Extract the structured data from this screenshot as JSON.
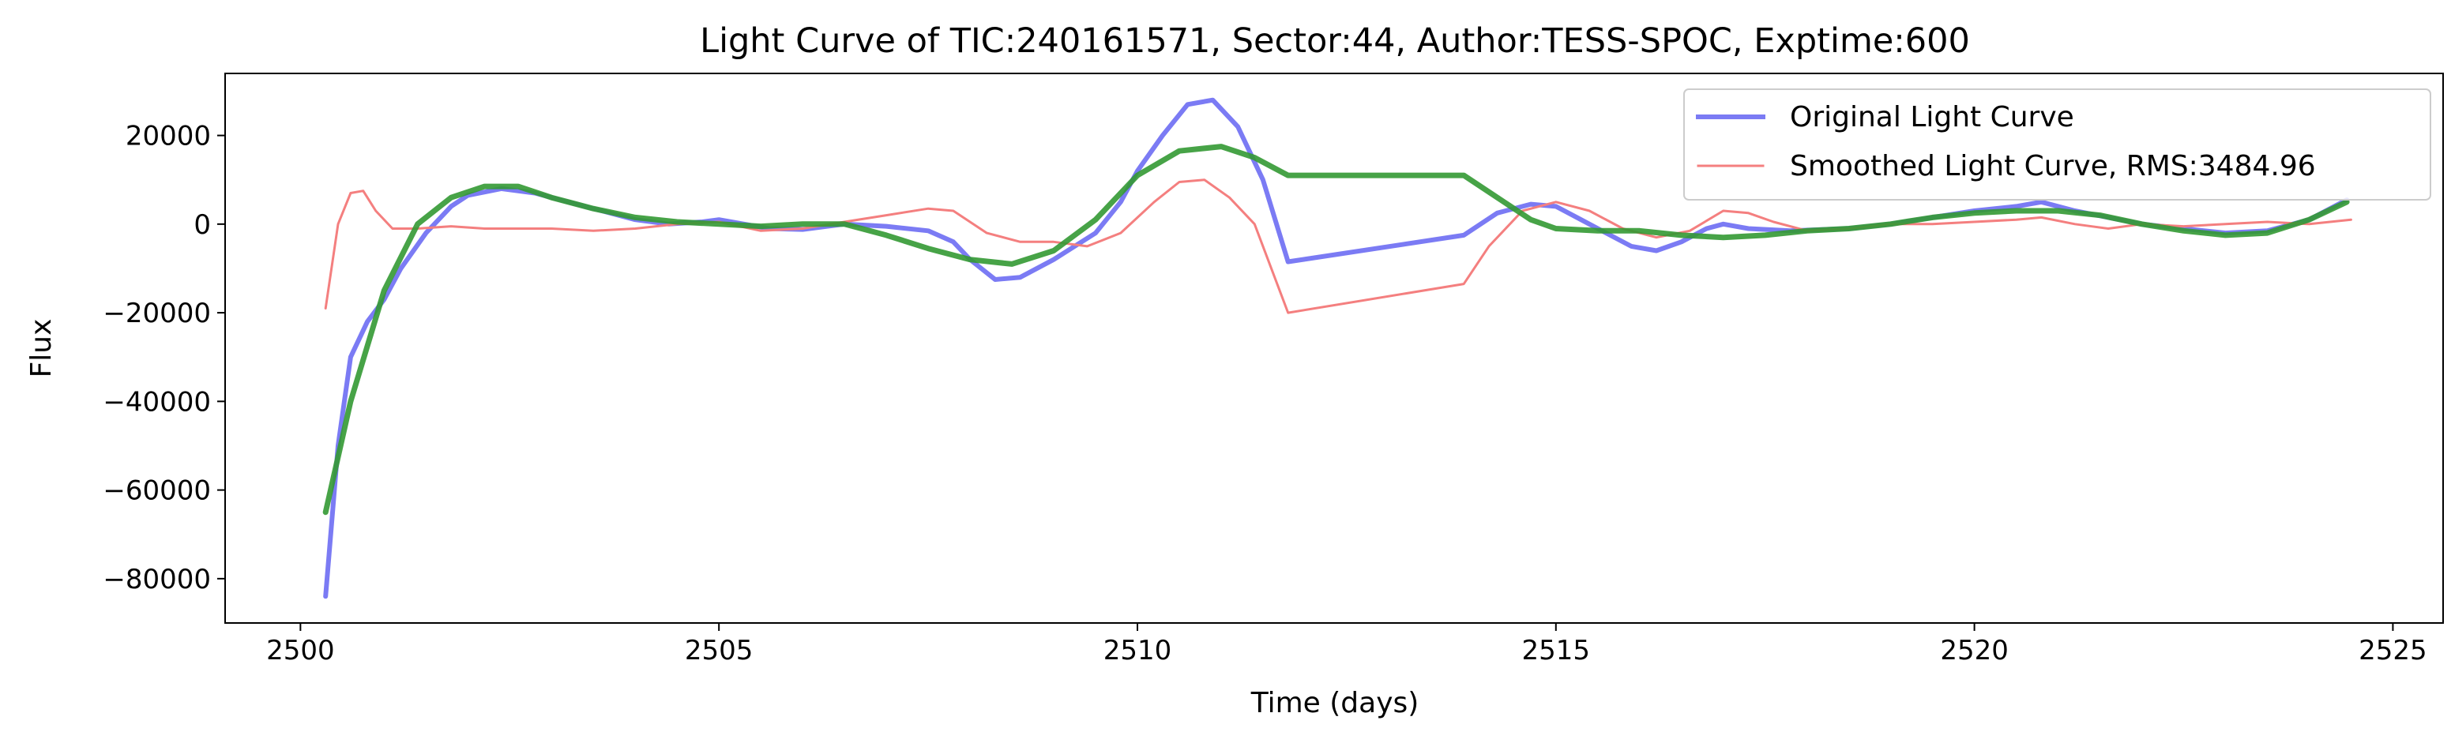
{
  "chart_data": {
    "type": "line",
    "title": "Light Curve of TIC:240161571, Sector:44, Author:TESS-SPOC, Exptime:600",
    "xlabel": "Time (days)",
    "ylabel": "Flux",
    "xlim": [
      2499.1,
      2525.6
    ],
    "ylim": [
      -90000,
      34000
    ],
    "xticks": [
      2500,
      2505,
      2510,
      2515,
      2520,
      2525
    ],
    "yticks": [
      -80000,
      -60000,
      -40000,
      -20000,
      0,
      20000
    ],
    "ytick_labels": [
      "−80000",
      "−60000",
      "−40000",
      "−20000",
      "0",
      "20000"
    ],
    "grid": false,
    "legend_position": "top-right",
    "series": [
      {
        "name": "Original Light Curve",
        "color": "#7b7bf4",
        "x": [
          2500.3,
          2500.45,
          2500.6,
          2500.8,
          2501.0,
          2501.2,
          2501.5,
          2501.8,
          2502.0,
          2502.4,
          2502.8,
          2503.2,
          2503.6,
          2504.0,
          2504.4,
          2504.8,
          2505.0,
          2505.3,
          2505.6,
          2506.0,
          2506.5,
          2507.0,
          2507.5,
          2507.8,
          2508.0,
          2508.3,
          2508.6,
          2509.0,
          2509.5,
          2509.8,
          2510.0,
          2510.3,
          2510.6,
          2510.9,
          2511.2,
          2511.5,
          2511.8,
          2513.9,
          2514.3,
          2514.7,
          2515.0,
          2515.3,
          2515.6,
          2515.9,
          2516.2,
          2516.5,
          2516.8,
          2517.0,
          2517.3,
          2517.8,
          2518.5,
          2519.0,
          2519.5,
          2520.0,
          2520.5,
          2520.8,
          2521.2,
          2521.6,
          2522.0,
          2522.5,
          2523.0,
          2523.5,
          2524.0,
          2524.45
        ],
        "y": [
          -84000,
          -50000,
          -30000,
          -22000,
          -17000,
          -10000,
          -2000,
          4000,
          6500,
          8000,
          7000,
          5000,
          3000,
          1000,
          0,
          500,
          1000,
          0,
          -1000,
          -1200,
          0,
          -500,
          -1500,
          -4000,
          -8000,
          -12500,
          -12000,
          -8000,
          -2000,
          5000,
          12000,
          20000,
          27000,
          28000,
          22000,
          10000,
          -8500,
          -2500,
          2500,
          4500,
          4000,
          1000,
          -2000,
          -5000,
          -6000,
          -4000,
          -1000,
          0,
          -1000,
          -1500,
          -1000,
          0,
          1500,
          3000,
          4000,
          5000,
          3000,
          1500,
          0,
          -1000,
          -2000,
          -1500,
          1000,
          5500
        ]
      },
      {
        "name": "Smoothed Light Curve, RMS:3484.96",
        "color": "#f47f7f",
        "x": [
          2500.3,
          2500.45,
          2500.6,
          2500.75,
          2500.9,
          2501.1,
          2501.4,
          2501.8,
          2502.2,
          2502.6,
          2503.0,
          2503.5,
          2504.0,
          2504.5,
          2505.0,
          2505.5,
          2506.0,
          2506.5,
          2507.0,
          2507.5,
          2507.8,
          2508.2,
          2508.6,
          2509.0,
          2509.4,
          2509.8,
          2510.2,
          2510.5,
          2510.8,
          2511.1,
          2511.4,
          2511.8,
          2513.9,
          2514.2,
          2514.6,
          2515.0,
          2515.4,
          2515.8,
          2516.2,
          2516.6,
          2517.0,
          2517.3,
          2517.6,
          2518.0,
          2518.5,
          2519.0,
          2519.5,
          2520.0,
          2520.5,
          2520.8,
          2521.2,
          2521.6,
          2522.0,
          2522.5,
          2523.0,
          2523.5,
          2524.0,
          2524.5
        ],
        "y": [
          -19000,
          0,
          7000,
          7500,
          3000,
          -1000,
          -1000,
          -500,
          -1000,
          -1000,
          -1000,
          -1500,
          -1000,
          0,
          500,
          -1500,
          -1000,
          500,
          2000,
          3500,
          3000,
          -2000,
          -4000,
          -4000,
          -5000,
          -2000,
          5000,
          9500,
          10000,
          6000,
          0,
          -20000,
          -13500,
          -5000,
          3000,
          5000,
          3000,
          -1000,
          -3000,
          -1500,
          3000,
          2500,
          500,
          -1500,
          -1000,
          0,
          0,
          500,
          1000,
          1500,
          0,
          -1000,
          0,
          -500,
          0,
          500,
          0,
          1000
        ]
      },
      {
        "name": "",
        "color": "#339933",
        "x": [
          2500.3,
          2500.6,
          2501.0,
          2501.4,
          2501.8,
          2502.2,
          2502.6,
          2503.0,
          2503.5,
          2504.0,
          2504.5,
          2505.0,
          2505.5,
          2506.0,
          2506.5,
          2507.0,
          2507.5,
          2508.0,
          2508.5,
          2509.0,
          2509.5,
          2510.0,
          2510.5,
          2511.0,
          2511.4,
          2511.8,
          2513.9,
          2514.3,
          2514.7,
          2515.0,
          2515.5,
          2516.0,
          2516.5,
          2517.0,
          2517.5,
          2518.0,
          2518.5,
          2519.0,
          2519.5,
          2520.0,
          2520.5,
          2521.0,
          2521.5,
          2522.0,
          2522.5,
          2523.0,
          2523.5,
          2524.0,
          2524.45
        ],
        "y": [
          -65000,
          -40000,
          -15000,
          0,
          6000,
          8500,
          8500,
          6000,
          3500,
          1500,
          500,
          0,
          -500,
          0,
          0,
          -2500,
          -5500,
          -8000,
          -9000,
          -6000,
          1000,
          11000,
          16500,
          17500,
          15000,
          11000,
          11000,
          6000,
          1000,
          -1000,
          -1500,
          -1500,
          -2500,
          -3000,
          -2500,
          -1500,
          -1000,
          0,
          1500,
          2500,
          3000,
          3000,
          2000,
          0,
          -1500,
          -2500,
          -2000,
          1000,
          5000
        ]
      }
    ]
  }
}
